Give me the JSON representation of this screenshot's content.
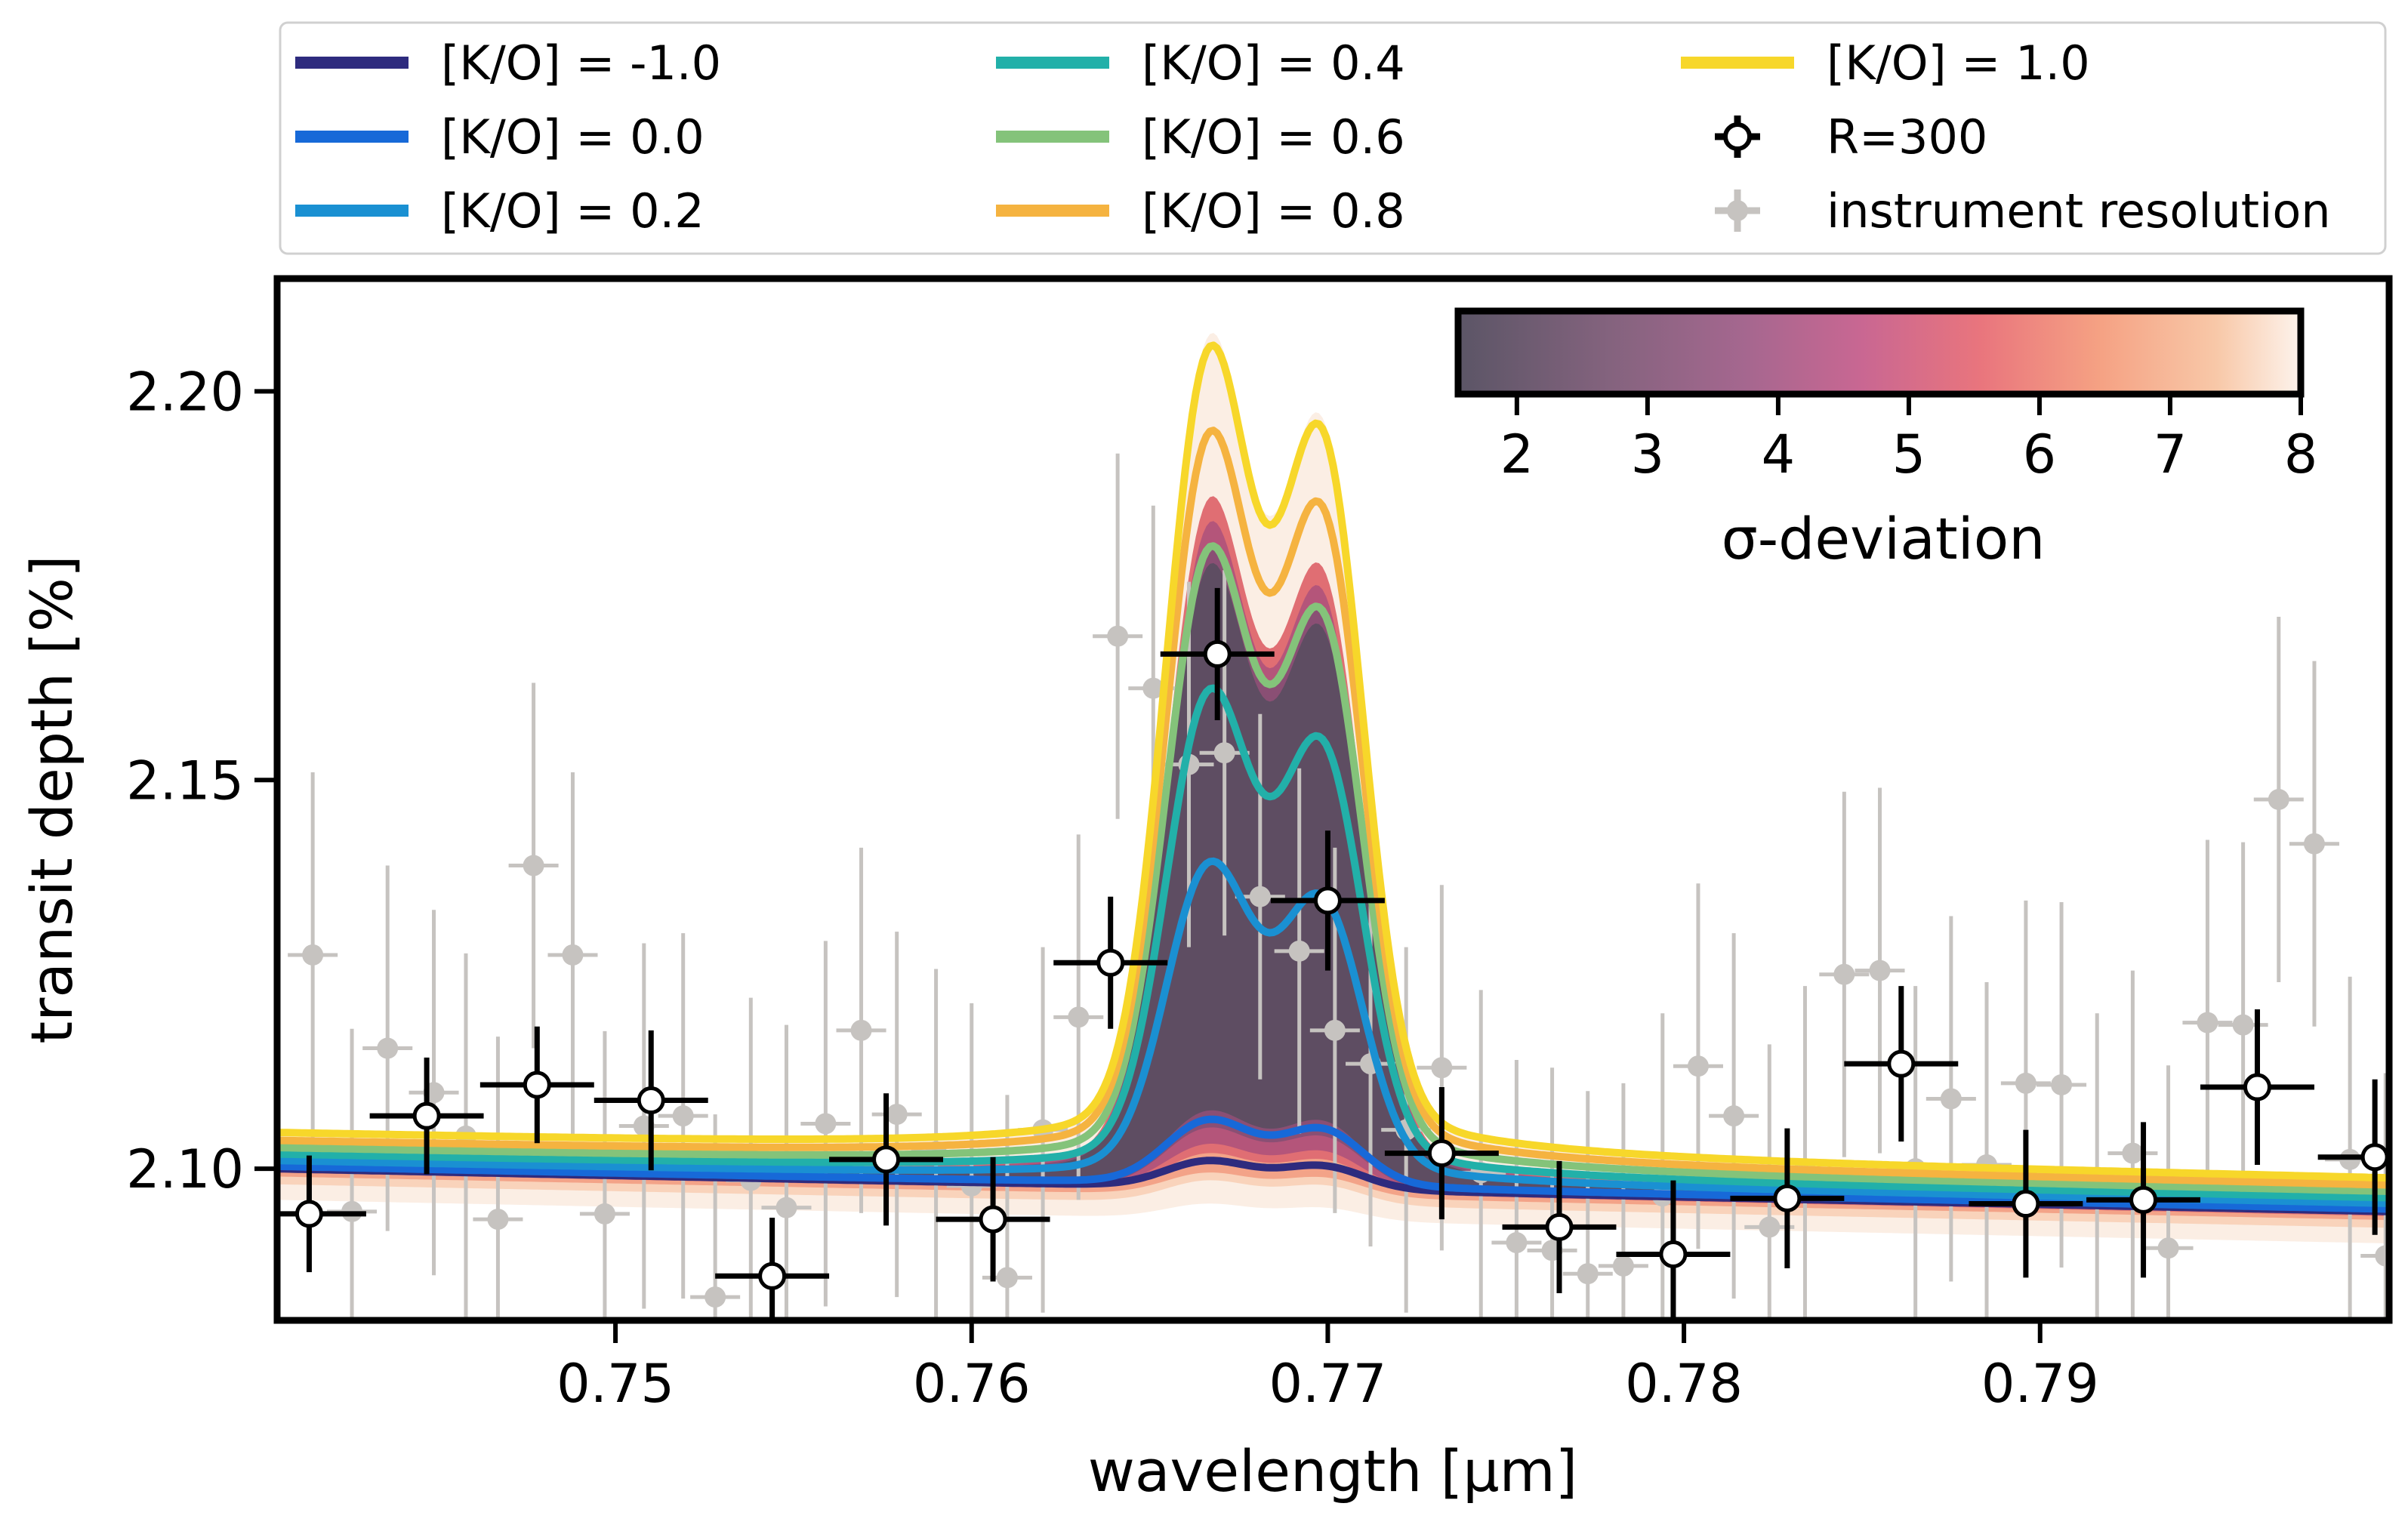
{
  "chart_data": {
    "type": "line",
    "xlabel": "wavelength [μm]",
    "ylabel": "transit depth [%]",
    "xlim": [
      0.7405,
      0.7998
    ],
    "ylim": [
      2.0805,
      2.2145
    ],
    "xticks": [
      0.75,
      0.76,
      0.77,
      0.78,
      0.79
    ],
    "yticks": [
      2.1,
      2.15,
      2.2
    ],
    "xtick_labels": [
      "0.75",
      "0.76",
      "0.77",
      "0.78",
      "0.79"
    ],
    "ytick_labels": [
      "2.10",
      "2.15",
      "2.20"
    ],
    "legend_position": "top (above plot)",
    "series": [
      {
        "name": "[K/O] = -1.0",
        "color": "#2e2b7e",
        "peak": 0.0035,
        "base": [
          2.1,
          2.0945
        ]
      },
      {
        "name": "[K/O] = 0.0",
        "color": "#1769d8",
        "peak": 0.0085,
        "base": [
          2.1003,
          2.0948
        ]
      },
      {
        "name": "[K/O] = 0.2",
        "color": "#1a90d2",
        "peak": 0.041,
        "base": [
          2.101,
          2.0955
        ]
      },
      {
        "name": "[K/O] = 0.4",
        "color": "#22b0a9",
        "peak": 0.0625,
        "base": [
          2.1018,
          2.0962
        ]
      },
      {
        "name": "[K/O] = 0.6",
        "color": "#84c37a",
        "peak": 0.08,
        "base": [
          2.1026,
          2.097
        ]
      },
      {
        "name": "[K/O] = 0.8",
        "color": "#f5b340",
        "peak": 0.094,
        "base": [
          2.1035,
          2.0978
        ]
      },
      {
        "name": "[K/O] = 1.0",
        "color": "#f7d72a",
        "peak": 0.104,
        "base": [
          2.1045,
          2.0987
        ]
      }
    ],
    "binned_points": {
      "name": "R=300",
      "x": [
        0.7414,
        0.7447,
        0.7478,
        0.751,
        0.7544,
        0.7576,
        0.7606,
        0.7639,
        0.7669,
        0.77,
        0.7732,
        0.7765,
        0.7797,
        0.7829,
        0.7861,
        0.7896,
        0.7929,
        0.7961,
        0.7994
      ],
      "y": [
        2.0942,
        2.1068,
        2.1108,
        2.1088,
        2.0862,
        2.1012,
        2.0935,
        2.1265,
        2.1662,
        2.1345,
        2.102,
        2.0925,
        2.089,
        2.0962,
        2.1135,
        2.0955,
        2.096,
        2.1105,
        2.1015
      ],
      "xerr": 0.0016,
      "yerr": [
        0.0075,
        0.0075,
        0.0075,
        0.009,
        0.0075,
        0.0085,
        0.008,
        0.0085,
        0.0085,
        0.009,
        0.0085,
        0.0085,
        0.0095,
        0.009,
        0.01,
        0.0095,
        0.01,
        0.01,
        0.01
      ]
    },
    "instrument_points": {
      "name": "instrument resolution",
      "x": [
        0.7415,
        0.7426,
        0.7436,
        0.7449,
        0.7458,
        0.7467,
        0.7477,
        0.7488,
        0.7497,
        0.7508,
        0.7519,
        0.7528,
        0.7538,
        0.7548,
        0.7559,
        0.7569,
        0.7579,
        0.759,
        0.76,
        0.761,
        0.762,
        0.763,
        0.7641,
        0.7651,
        0.7661,
        0.7671,
        0.7681,
        0.7692,
        0.7702,
        0.7712,
        0.7722,
        0.7732,
        0.7743,
        0.7753,
        0.7763,
        0.7773,
        0.7783,
        0.7794,
        0.7804,
        0.7814,
        0.7824,
        0.7834,
        0.7845,
        0.7855,
        0.7865,
        0.7875,
        0.7885,
        0.7896,
        0.7906,
        0.7916,
        0.7926,
        0.7936,
        0.7947,
        0.7957,
        0.7967,
        0.7977,
        0.7987,
        0.7997
      ],
      "y": [
        2.1275,
        2.0945,
        2.1155,
        2.1098,
        2.1042,
        2.0935,
        2.139,
        2.1275,
        2.0942,
        2.1055,
        2.1068,
        2.0835,
        2.0985,
        2.095,
        2.1058,
        2.1178,
        2.107,
        2.1022,
        2.0978,
        2.086,
        2.105,
        2.1195,
        2.1685,
        2.1618,
        2.152,
        2.1535,
        2.135,
        2.128,
        2.1178,
        2.1135,
        2.105,
        2.113,
        2.0995,
        2.0905,
        2.0895,
        2.0865,
        2.0875,
        2.0965,
        2.1132,
        2.1068,
        2.0925,
        2.1,
        2.125,
        2.1255,
        2.1,
        2.109,
        2.1005,
        2.111,
        2.1108,
        2.0965,
        2.102,
        2.0898,
        2.1188,
        2.1185,
        2.1475,
        2.1418,
        2.1012,
        2.0888
      ],
      "yerr": 0.0235,
      "xerr": 0.0007
    }
  },
  "colorbar": {
    "label": "σ-deviation",
    "ticks": [
      2,
      3,
      4,
      5,
      6,
      7,
      8
    ],
    "range": [
      1.55,
      8.0
    ],
    "colormap": "magma-like",
    "tick_labels": [
      "2",
      "3",
      "4",
      "5",
      "6",
      "7",
      "8"
    ]
  },
  "bands": [
    {
      "sigma": 8,
      "color": "#fbeee4"
    },
    {
      "sigma": 7,
      "color": "#f9d3bb"
    },
    {
      "sigma": 6,
      "color": "#f3a388"
    },
    {
      "sigma": 5,
      "color": "#e06e73"
    },
    {
      "sigma": 4,
      "color": "#b4557a"
    },
    {
      "sigma": 3,
      "color": "#8a4f74"
    },
    {
      "sigma": 2,
      "color": "#5e4d62"
    }
  ],
  "legend": {
    "entries": [
      {
        "label": "[K/O] = -1.0",
        "kind": "line",
        "color": "#2e2b7e"
      },
      {
        "label": "[K/O] = 0.0",
        "kind": "line",
        "color": "#1769d8"
      },
      {
        "label": "[K/O] = 0.2",
        "kind": "line",
        "color": "#1a90d2"
      },
      {
        "label": "[K/O] = 0.4",
        "kind": "line",
        "color": "#22b0a9"
      },
      {
        "label": "[K/O] = 0.6",
        "kind": "line",
        "color": "#84c37a"
      },
      {
        "label": "[K/O] = 0.8",
        "kind": "line",
        "color": "#f5b340"
      },
      {
        "label": "[K/O] = 1.0",
        "kind": "line",
        "color": "#f7d72a"
      },
      {
        "label": "R=300",
        "kind": "binned"
      },
      {
        "label": "instrument resolution",
        "kind": "instrument"
      }
    ]
  }
}
